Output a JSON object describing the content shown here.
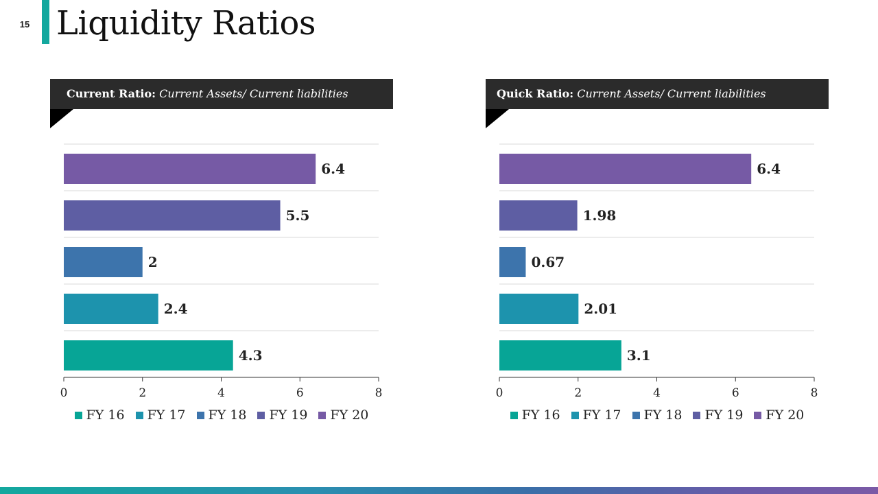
{
  "slide": {
    "page_number": "15",
    "title": "Liquidity Ratios"
  },
  "chart_data": [
    {
      "type": "bar",
      "orientation": "horizontal",
      "banner_label": "Current Ratio:",
      "banner_formula": "Current Assets/ Current liabilities",
      "categories": [
        "FY 16",
        "FY 17",
        "FY 18",
        "FY 19",
        "FY 20"
      ],
      "values": [
        4.3,
        2.4,
        2,
        5.5,
        6.4
      ],
      "data_labels": [
        "4.3",
        "2.4",
        "2",
        "5.5",
        "6.4"
      ],
      "colors": [
        "#07a596",
        "#1d93ad",
        "#3d74ac",
        "#5e5ea3",
        "#765aa5"
      ],
      "xlim": [
        0,
        8
      ],
      "xticks": [
        0,
        2,
        4,
        6,
        8
      ],
      "legend_position": "bottom",
      "grid": true
    },
    {
      "type": "bar",
      "orientation": "horizontal",
      "banner_label": "Quick Ratio:",
      "banner_formula": "Current Assets/ Current liabilities",
      "categories": [
        "FY 16",
        "FY 17",
        "FY 18",
        "FY 19",
        "FY 20"
      ],
      "values": [
        3.1,
        2.01,
        0.67,
        1.98,
        6.4
      ],
      "data_labels": [
        "3.1",
        "2.01",
        "0.67",
        "1.98",
        "6.4"
      ],
      "colors": [
        "#07a596",
        "#1d93ad",
        "#3d74ac",
        "#5e5ea3",
        "#765aa5"
      ],
      "xlim": [
        0,
        8
      ],
      "xticks": [
        0,
        2,
        4,
        6,
        8
      ],
      "legend_position": "bottom",
      "grid": true
    }
  ]
}
